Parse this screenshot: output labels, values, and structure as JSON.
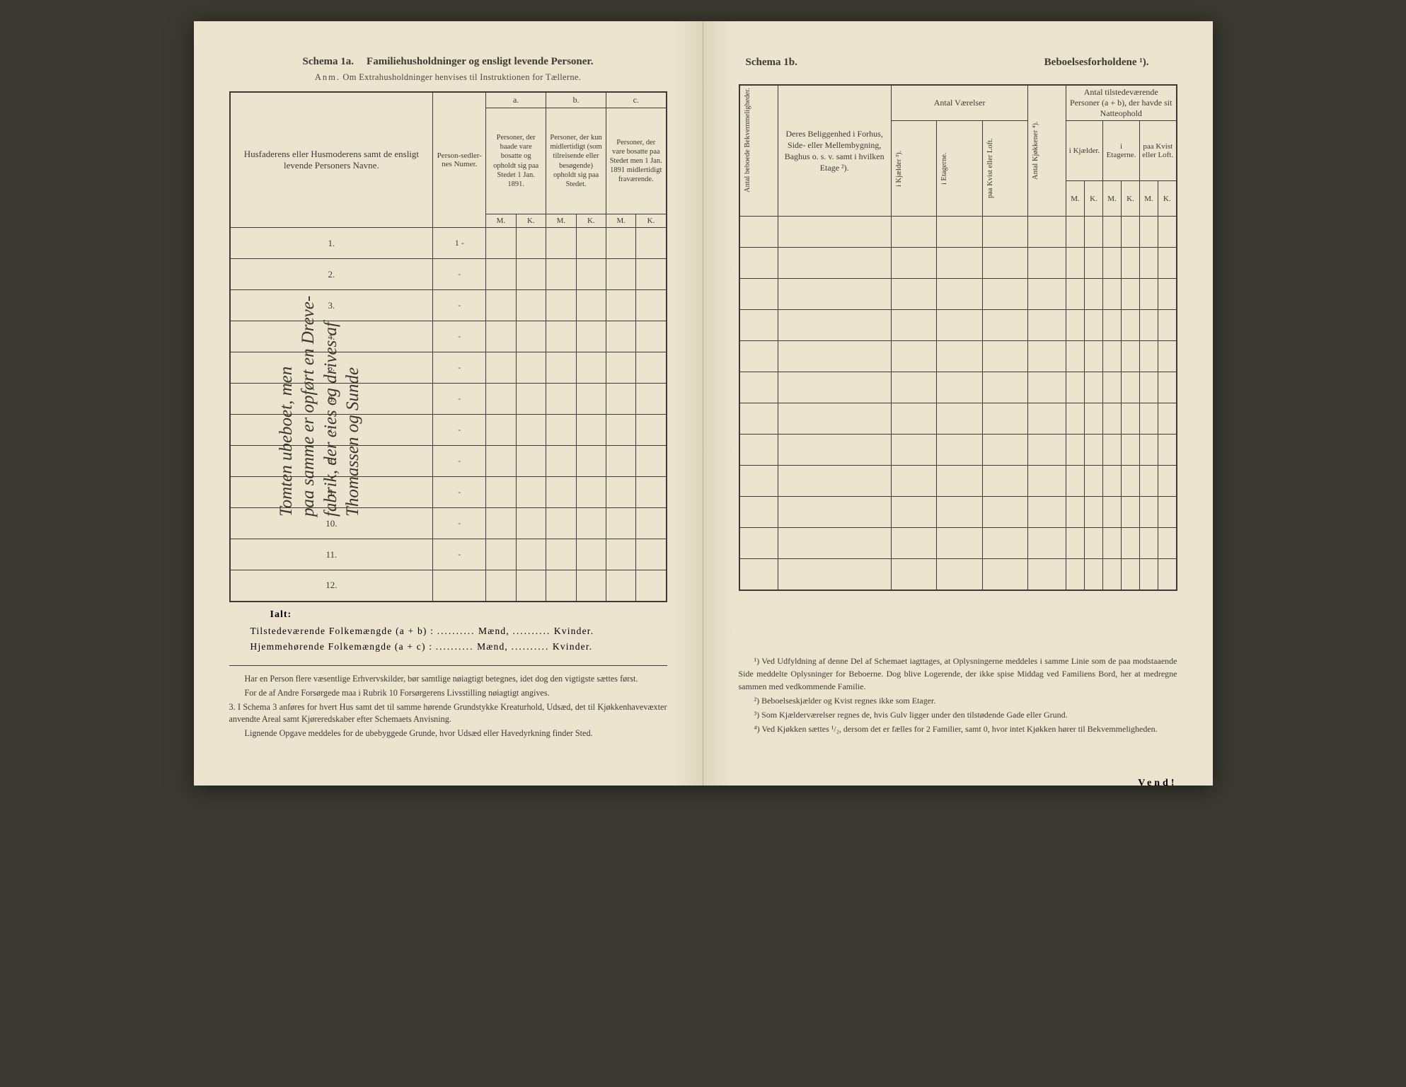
{
  "left": {
    "schema_label": "Schema 1a.",
    "schema_title": "Familiehusholdninger og ensligt levende Personer.",
    "subtitle_prefix": "Anm.",
    "subtitle": "Om Extrahusholdninger henvises til Instruktionen for Tællerne.",
    "col_name": "Husfaderens eller Husmoderens samt de ensligt levende Personers Navne.",
    "col_num": "Person-sedler-nes Numer.",
    "col_a": "a.",
    "col_a_desc": "Personer, der baade vare bosatte og opholdt sig paa Stedet 1 Jan. 1891.",
    "col_b": "b.",
    "col_b_desc": "Personer, der kun midlertidigt (som tilreisende eller besøgende) opholdt sig paa Stedet.",
    "col_c": "c.",
    "col_c_desc": "Personer, der vare bosatte paa Stedet men 1 Jan. 1891 midlertidigt fraværende.",
    "M": "M.",
    "K": "K.",
    "rows": [
      "1.",
      "2.",
      "3.",
      "4.",
      "5.",
      "6.",
      "7.",
      "8.",
      "9.",
      "10.",
      "11.",
      "12."
    ],
    "first_num": "1 -",
    "handwriting_l1": "Tomten ubeboet, men",
    "handwriting_l2": "paa samme er opført en Dreve-",
    "handwriting_l3": "fabrik, der eies og drives af",
    "handwriting_l4": "Thomassen og Sunde",
    "ialt": "Ialt:",
    "tot1_label": "Tilstedeværende Folkemængde (a + b) :",
    "tot2_label": "Hjemmehørende Folkemængde (a + c) :",
    "dots": "..........",
    "maend": "Mænd,",
    "kvinder": "Kvinder.",
    "note1": "Har en Person flere væsentlige Erhvervskilder, bør samtlige nøiagtigt betegnes, idet dog den vigtigste sættes først.",
    "note2": "For de af Andre Forsørgede maa i Rubrik 10 Forsørgerens Livsstilling nøiagtigt angives.",
    "note3_num": "3.",
    "note3": "I Schema 3 anføres for hvert Hus samt det til samme hørende Grundstykke Kreaturhold, Udsæd, det til Kjøkkenhavevæxter anvendte Areal samt Kjøreredskaber efter Schemaets Anvisning.",
    "note4": "Lignende Opgave meddeles for de ubebyggede Grunde, hvor Udsæd eller Havedyrkning finder Sted."
  },
  "right": {
    "schema_label": "Schema 1b.",
    "schema_title": "Beboelsesforholdene ¹).",
    "col_bekv": "Antal beboede Bekvemmeligheder.",
    "col_loc": "Deres Beliggenhed i Forhus, Side- eller Mellembygning, Baghus o. s. v. samt i hvilken Etage ²).",
    "grp_vaer": "Antal Værelser",
    "v_kj": "i Kjælder ³).",
    "v_et": "i Etagerne.",
    "v_loft": "paa Kvist eller Loft.",
    "col_kjokken": "Antal Kjøkkener ⁴).",
    "grp_pers": "Antal tilstedeværende Personer (a + b), der havde sit Natteophold",
    "p_kj": "i Kjælder.",
    "p_et": "i Etagerne.",
    "p_loft": "paa Kvist eller Loft.",
    "M": "M.",
    "K": "K.",
    "fn1": "¹) Ved Udfyldning af denne Del af Schemaet iagttages, at Oplysningerne meddeles i samme Linie som de paa modstaaende Side meddelte Oplysninger for Beboerne. Dog blive Logerende, der ikke spise Middag ved Familiens Bord, her at medregne sammen med vedkommende Familie.",
    "fn2": "²) Beboelseskjælder og Kvist regnes ikke som Etager.",
    "fn3": "³) Som Kjælderværelser regnes de, hvis Gulv ligger under den tilstødende Gade eller Grund.",
    "fn4": "⁴) Ved Kjøkken sættes ¹/₂, dersom det er fælles for 2 Familier, samt 0, hvor intet Kjøkken hører til Bekvemmeligheden.",
    "vend": "Vend!"
  }
}
